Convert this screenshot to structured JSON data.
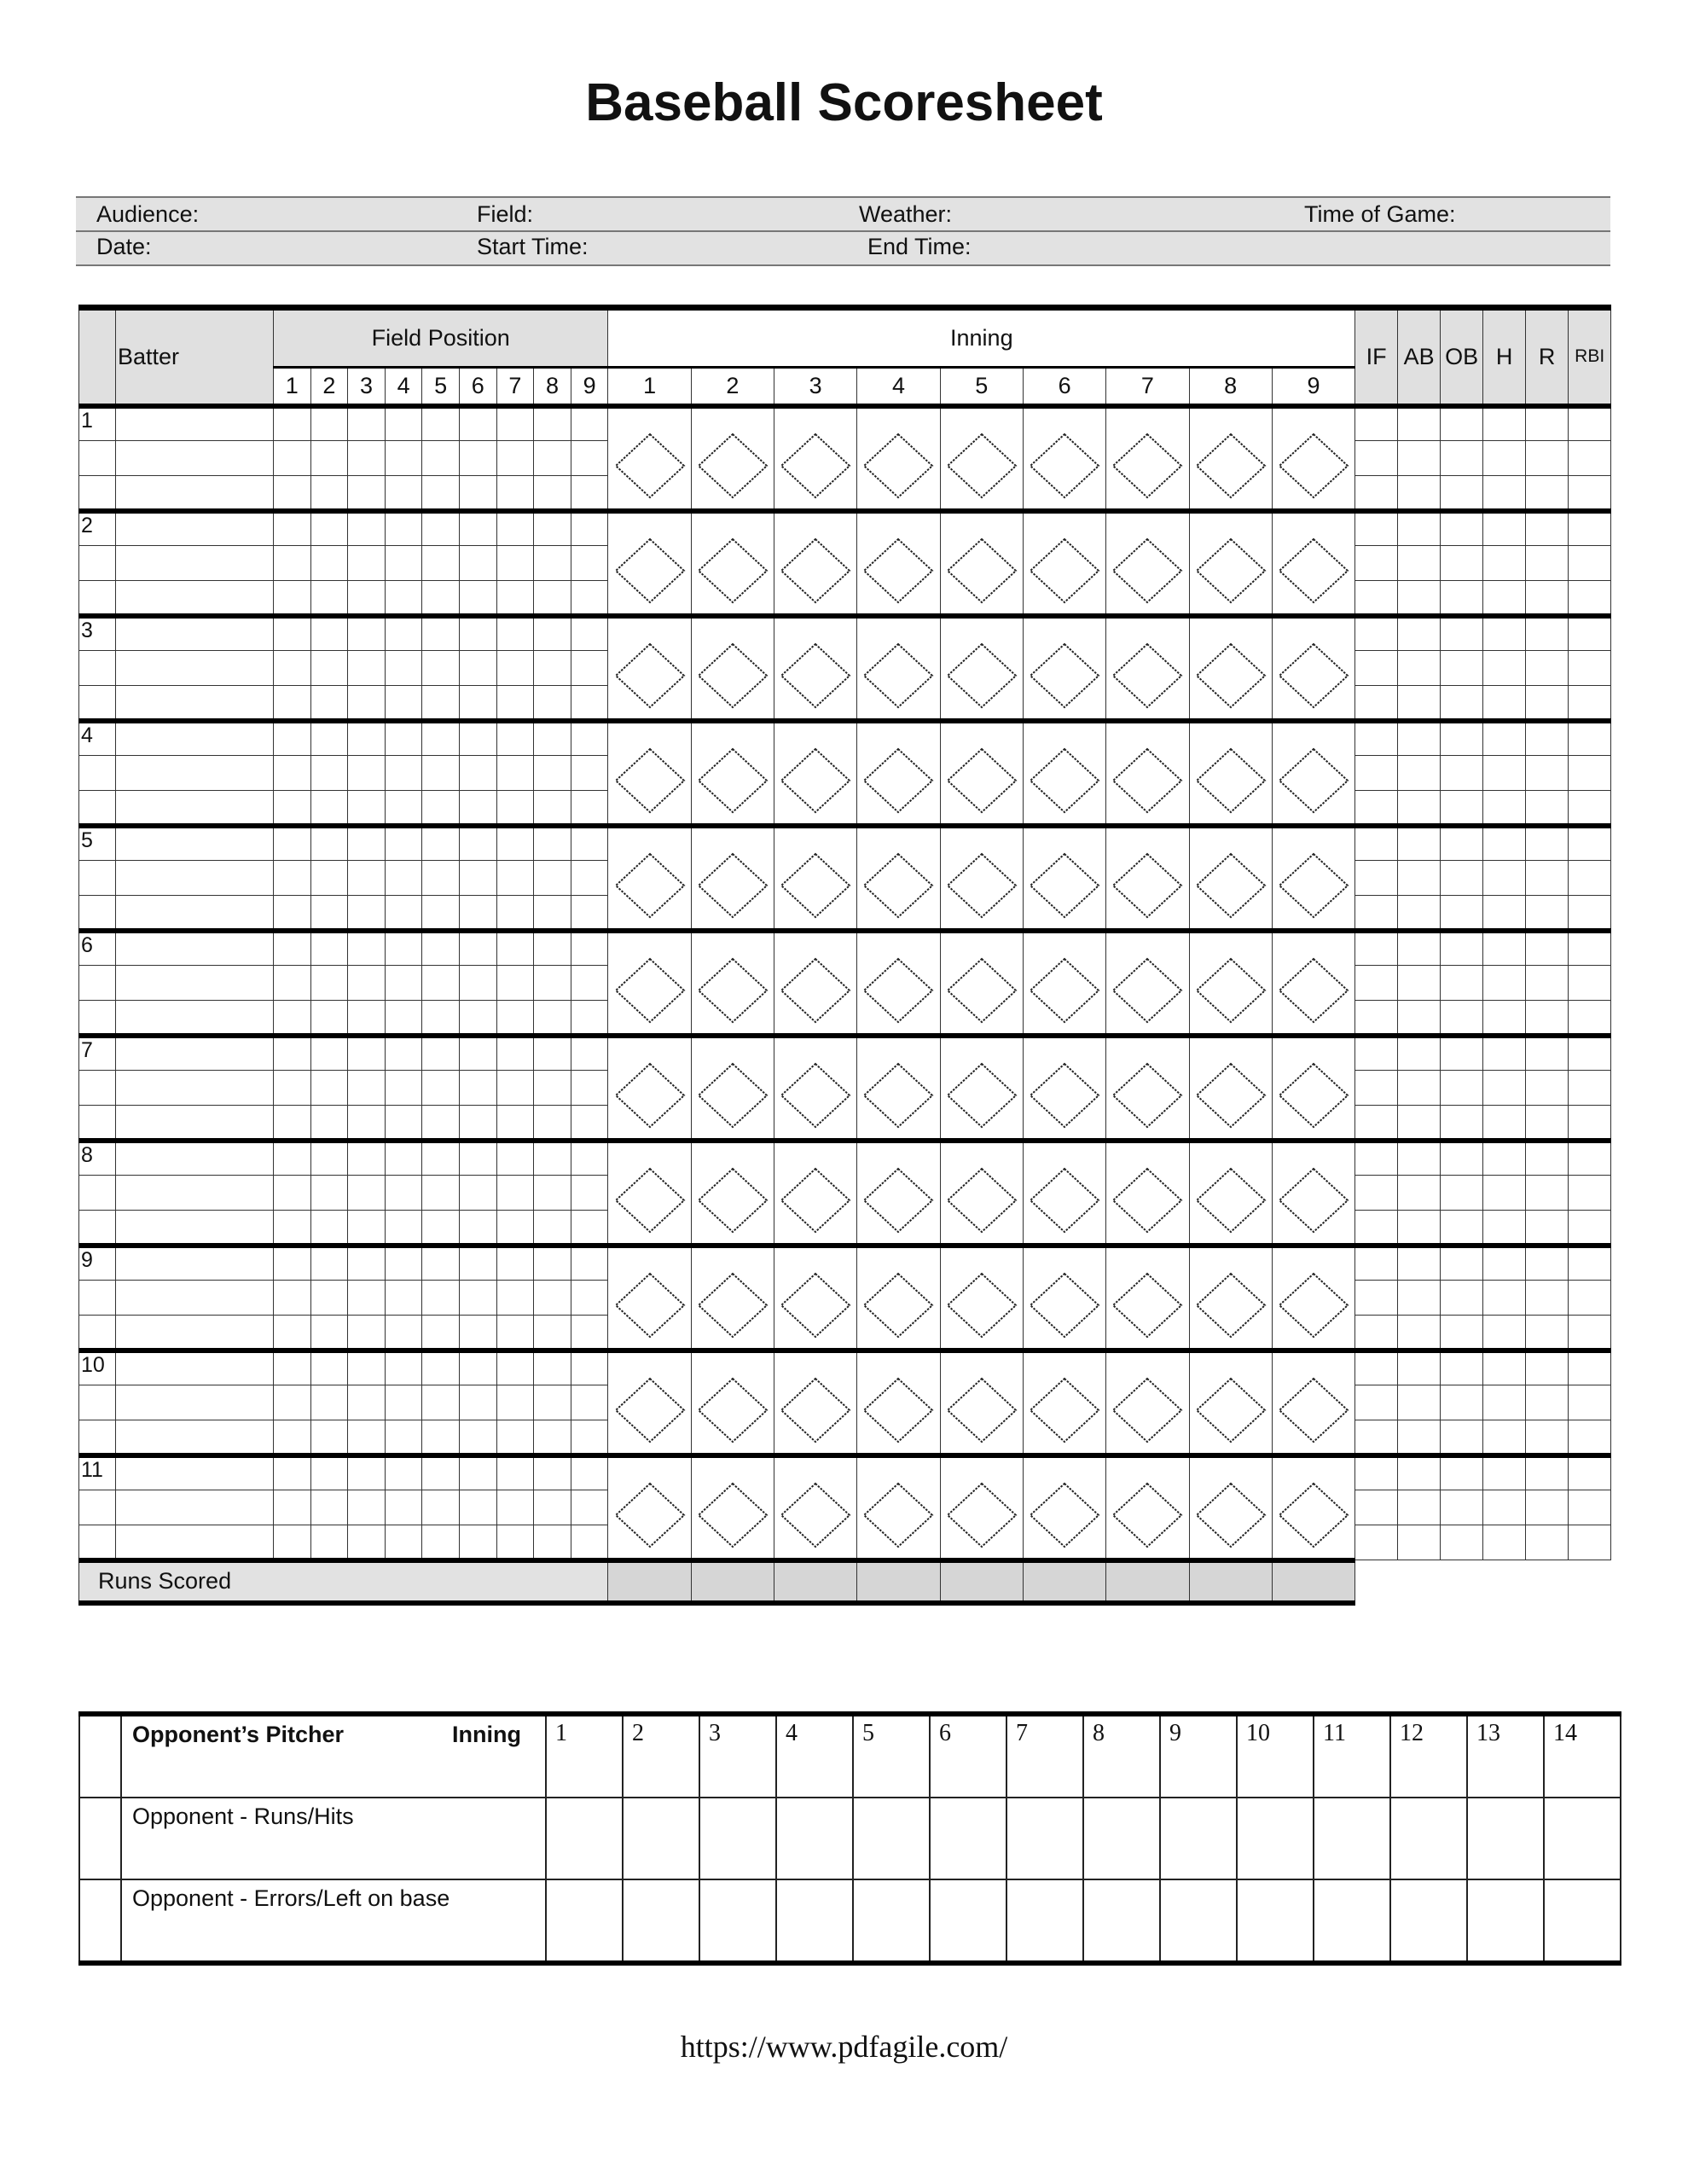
{
  "title": "Baseball Scoresheet",
  "info": {
    "audience": "Audience:",
    "field": "Field:",
    "weather": "Weather:",
    "time_of_game": "Time of Game:",
    "date": "Date:",
    "start_time": "Start Time:",
    "end_time": "End Time:"
  },
  "main": {
    "batter_label": "Batter",
    "field_position_label": "Field Position",
    "inning_label": "Inning",
    "field_positions": [
      "1",
      "2",
      "3",
      "4",
      "5",
      "6",
      "7",
      "8",
      "9"
    ],
    "innings": [
      "1",
      "2",
      "3",
      "4",
      "5",
      "6",
      "7",
      "8",
      "9"
    ],
    "stats": [
      "IF",
      "AB",
      "OB",
      "H",
      "R",
      "RBI"
    ],
    "batters": [
      "1",
      "2",
      "3",
      "4",
      "5",
      "6",
      "7",
      "8",
      "9",
      "10",
      "11"
    ],
    "runs_scored_label": "Runs Scored",
    "fill_color": "#e0e0e0"
  },
  "opponent": {
    "pitcher_label": "Opponent’s Pitcher",
    "inning_label": "Inning",
    "innings": [
      "1",
      "2",
      "3",
      "4",
      "5",
      "6",
      "7",
      "8",
      "9",
      "10",
      "11",
      "12",
      "13",
      "14"
    ],
    "rows": [
      "Opponent - Runs/Hits",
      "Opponent - Errors/Left on base"
    ]
  },
  "footer_url": "https://www.pdfagile.com/"
}
